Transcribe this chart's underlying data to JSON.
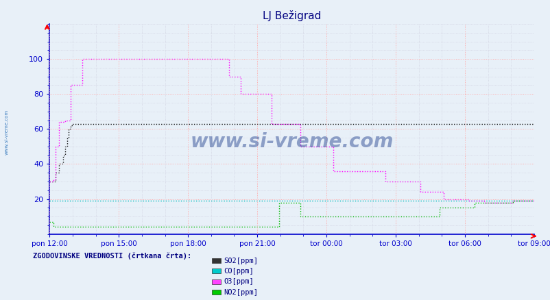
{
  "title": "LJ Bežigrad",
  "background_color": "#e8f0f8",
  "plot_bg_color": "#e8f0f8",
  "grid_color_major": "#ffaaaa",
  "grid_color_minor": "#ccccdd",
  "axis_color": "#0000cc",
  "ymin": 0,
  "ymax": 120,
  "yticks": [
    20,
    40,
    60,
    80,
    100
  ],
  "x_tick_labels": [
    "pon 12:00",
    "pon 15:00",
    "pon 18:00",
    "pon 21:00",
    "tor 00:00",
    "tor 03:00",
    "tor 06:00",
    "tor 09:00"
  ],
  "n_points": 252,
  "legend_text": "ZGODOVINSKE VREDNOSTI (črtkana črta):",
  "legend_items": [
    "SO2[ppm]",
    "CO[ppm]",
    "O3[ppm]",
    "NO2[ppm]"
  ],
  "line_colors": [
    "#111111",
    "#00bbbb",
    "#ff00ff",
    "#00bb00"
  ],
  "legend_icon_colors": [
    "#333333",
    "#00cccc",
    "#ff44ff",
    "#00cc00"
  ],
  "watermark": "www.si-vreme.com",
  "SO2_values": [
    30,
    30,
    30,
    35,
    35,
    40,
    40,
    45,
    50,
    55,
    60,
    62,
    63,
    63,
    63,
    63,
    63,
    63,
    63,
    63,
    63,
    63,
    63,
    63,
    63,
    63,
    63,
    63,
    63,
    63,
    63,
    63,
    63,
    63,
    63,
    63,
    63,
    63,
    63,
    63,
    63,
    63,
    63,
    63,
    63,
    63,
    63,
    63,
    63,
    63,
    63,
    63,
    63,
    63,
    63,
    63,
    63,
    63,
    63,
    63,
    63,
    63,
    63,
    63,
    63,
    63,
    63,
    63,
    63,
    63,
    63,
    63,
    63,
    63,
    63,
    63,
    63,
    63,
    63,
    63,
    63,
    63,
    63,
    63,
    63,
    63,
    63,
    63,
    63,
    63,
    63,
    63,
    63,
    63,
    63,
    63,
    63,
    63,
    63,
    63,
    63,
    63,
    63,
    63,
    63,
    63,
    63,
    63,
    63,
    63,
    63,
    63,
    63,
    63,
    63,
    63,
    63,
    63,
    63,
    63,
    63,
    63,
    63,
    63,
    63,
    63,
    63,
    63,
    63,
    63,
    63,
    63,
    63,
    63,
    63,
    63,
    63,
    63,
    63,
    63,
    63,
    63,
    63,
    63,
    63,
    63,
    63,
    63,
    63,
    63,
    63,
    63,
    63,
    63,
    63,
    63,
    63,
    63,
    63,
    63,
    63,
    63,
    63,
    63,
    63,
    63,
    63,
    63,
    63,
    63,
    63,
    63,
    63,
    63,
    63,
    63,
    63,
    63,
    63,
    63,
    63,
    63,
    63,
    63,
    63,
    63,
    63,
    63,
    63,
    63,
    63,
    63,
    63,
    63,
    63,
    63,
    63,
    63,
    63,
    63,
    63,
    63,
    63,
    63,
    63,
    63,
    63,
    63,
    63,
    63,
    63,
    63,
    63,
    63,
    63,
    63,
    63,
    63,
    63,
    63,
    63,
    63,
    63,
    63,
    63,
    63,
    63,
    63,
    63,
    63,
    63,
    63,
    63,
    63,
    63,
    63,
    63,
    63,
    63,
    63,
    63,
    63,
    63,
    63,
    63,
    63,
    63,
    63,
    63,
    63,
    63,
    63
  ],
  "CO_values": [
    19,
    19,
    19,
    19,
    19,
    19,
    19,
    19,
    19,
    19,
    19,
    19,
    19,
    19,
    19,
    19,
    19,
    19,
    19,
    19,
    19,
    19,
    19,
    19,
    19,
    19,
    19,
    19,
    19,
    19,
    19,
    19,
    19,
    19,
    19,
    19,
    19,
    19,
    19,
    19,
    19,
    19,
    19,
    19,
    19,
    19,
    19,
    19,
    19,
    19,
    19,
    19,
    19,
    19,
    19,
    19,
    19,
    19,
    19,
    19,
    19,
    19,
    19,
    19,
    19,
    19,
    19,
    19,
    19,
    19,
    19,
    19,
    19,
    19,
    19,
    19,
    19,
    19,
    19,
    19,
    19,
    19,
    19,
    19,
    19,
    19,
    19,
    19,
    19,
    19,
    19,
    19,
    19,
    19,
    19,
    19,
    19,
    19,
    19,
    19,
    19,
    19,
    19,
    19,
    19,
    19,
    19,
    19,
    19,
    19,
    19,
    19,
    19,
    19,
    19,
    19,
    19,
    19,
    19,
    19,
    19,
    19,
    19,
    19,
    19,
    19,
    19,
    19,
    19,
    19,
    19,
    19,
    19,
    19,
    19,
    19,
    19,
    19,
    19,
    19,
    19,
    19,
    19,
    19,
    19,
    19,
    19,
    19,
    19,
    19,
    19,
    19,
    19,
    19,
    19,
    19,
    19,
    19,
    19,
    19,
    19,
    19,
    19,
    19,
    19,
    19,
    19,
    19,
    19,
    19,
    19,
    19,
    19,
    19,
    19,
    19,
    19,
    19,
    19,
    19,
    19,
    19,
    19,
    19,
    19,
    19,
    19,
    19,
    19,
    19,
    19,
    19,
    19,
    19,
    19,
    19,
    19,
    19,
    19,
    19,
    19,
    19,
    19,
    19,
    19,
    19,
    19,
    19,
    19,
    19,
    19,
    19,
    19,
    19,
    19,
    19,
    19,
    19,
    19,
    19,
    19,
    19,
    19,
    19,
    19,
    19,
    19,
    19,
    19,
    19,
    19,
    19,
    19,
    19,
    19,
    19,
    19,
    19,
    19,
    19,
    19,
    19,
    19,
    19,
    19,
    19,
    19,
    19,
    19,
    19,
    19,
    19
  ],
  "O3_values": [
    30,
    30,
    31,
    50,
    50,
    64,
    64,
    64,
    65,
    65,
    65,
    85,
    85,
    85,
    85,
    85,
    85,
    100,
    100,
    100,
    100,
    100,
    100,
    100,
    100,
    100,
    100,
    100,
    100,
    100,
    100,
    100,
    100,
    100,
    100,
    100,
    100,
    100,
    100,
    100,
    100,
    100,
    100,
    100,
    100,
    100,
    100,
    100,
    100,
    100,
    100,
    100,
    100,
    100,
    100,
    100,
    100,
    100,
    100,
    100,
    100,
    100,
    100,
    100,
    100,
    100,
    100,
    100,
    100,
    100,
    100,
    100,
    100,
    100,
    100,
    100,
    100,
    100,
    100,
    100,
    100,
    100,
    100,
    100,
    100,
    100,
    100,
    100,
    100,
    100,
    100,
    100,
    100,
    90,
    90,
    90,
    90,
    90,
    90,
    80,
    80,
    80,
    80,
    80,
    80,
    80,
    80,
    80,
    80,
    80,
    80,
    80,
    80,
    80,
    80,
    63,
    63,
    63,
    63,
    63,
    63,
    63,
    63,
    63,
    63,
    63,
    63,
    63,
    63,
    63,
    50,
    50,
    50,
    50,
    50,
    50,
    50,
    50,
    50,
    50,
    50,
    50,
    50,
    50,
    50,
    50,
    50,
    36,
    36,
    36,
    36,
    36,
    36,
    36,
    36,
    36,
    36,
    36,
    36,
    36,
    36,
    36,
    36,
    36,
    36,
    36,
    36,
    36,
    36,
    36,
    36,
    36,
    36,
    36,
    30,
    30,
    30,
    30,
    30,
    30,
    30,
    30,
    30,
    30,
    30,
    30,
    30,
    30,
    30,
    30,
    30,
    30,
    24,
    24,
    24,
    24,
    24,
    24,
    24,
    24,
    24,
    24,
    24,
    24,
    20,
    20,
    20,
    20,
    20,
    20,
    20,
    20,
    20,
    20,
    20,
    20,
    20,
    19,
    19,
    19,
    19,
    19,
    19,
    19,
    19,
    18,
    18,
    18,
    18,
    18,
    18,
    18,
    18,
    18,
    18,
    18,
    18,
    18,
    18,
    18,
    19,
    19,
    19,
    19,
    19,
    19,
    19,
    19,
    19,
    19,
    19,
    20
  ],
  "NO2_values": [
    7,
    7,
    4,
    4,
    4,
    4,
    4,
    4,
    4,
    4,
    4,
    4,
    4,
    4,
    4,
    4,
    4,
    4,
    4,
    4,
    4,
    4,
    4,
    4,
    4,
    4,
    4,
    4,
    4,
    4,
    4,
    4,
    4,
    4,
    4,
    4,
    4,
    4,
    4,
    4,
    4,
    4,
    4,
    4,
    4,
    4,
    4,
    4,
    4,
    4,
    4,
    4,
    4,
    4,
    4,
    4,
    4,
    4,
    4,
    4,
    4,
    4,
    4,
    4,
    4,
    4,
    4,
    4,
    4,
    4,
    4,
    4,
    4,
    4,
    4,
    4,
    4,
    4,
    4,
    4,
    4,
    4,
    4,
    4,
    4,
    4,
    4,
    4,
    4,
    4,
    4,
    4,
    4,
    4,
    4,
    4,
    4,
    4,
    4,
    4,
    4,
    4,
    4,
    4,
    4,
    4,
    4,
    4,
    4,
    4,
    4,
    4,
    4,
    4,
    4,
    4,
    4,
    4,
    4,
    18,
    18,
    18,
    18,
    18,
    18,
    18,
    18,
    18,
    18,
    18,
    10,
    10,
    10,
    10,
    10,
    10,
    10,
    10,
    10,
    10,
    10,
    10,
    10,
    10,
    10,
    10,
    10,
    10,
    10,
    10,
    10,
    10,
    10,
    10,
    10,
    10,
    10,
    10,
    10,
    10,
    10,
    10,
    10,
    10,
    10,
    10,
    10,
    10,
    10,
    10,
    10,
    10,
    10,
    10,
    10,
    10,
    10,
    10,
    10,
    10,
    10,
    10,
    10,
    10,
    10,
    10,
    10,
    10,
    10,
    10,
    10,
    10,
    10,
    10,
    10,
    10,
    10,
    10,
    10,
    10,
    10,
    10,
    15,
    15,
    15,
    15,
    15,
    15,
    15,
    15,
    15,
    15,
    15,
    15,
    15,
    15,
    15,
    15,
    15,
    15,
    18,
    18,
    18,
    18,
    18,
    18,
    18,
    18,
    18,
    18,
    18,
    18,
    18,
    18,
    18,
    18,
    18,
    18,
    18,
    18,
    19,
    19,
    19,
    19,
    19,
    19,
    19,
    19,
    19,
    19,
    19,
    19
  ]
}
